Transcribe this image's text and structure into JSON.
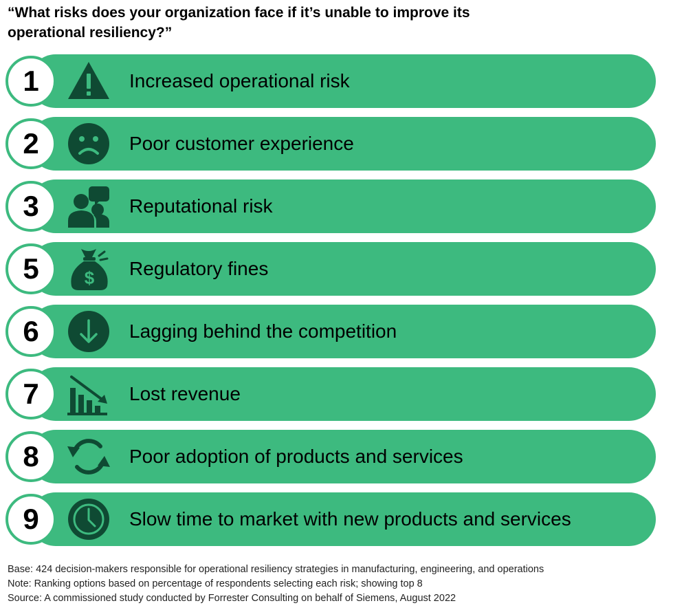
{
  "title": "“What risks does your organization face if it’s unable to improve its operational resiliency?”",
  "colors": {
    "accent": "#3dba7f",
    "icon": "#0f4a33",
    "text": "#000000"
  },
  "items": [
    {
      "rank": "1",
      "label": "Increased operational risk",
      "icon": "warning-icon"
    },
    {
      "rank": "2",
      "label": "Poor customer experience",
      "icon": "sad-face-icon"
    },
    {
      "rank": "3",
      "label": "Reputational risk",
      "icon": "people-speech-icon"
    },
    {
      "rank": "5",
      "label": "Regulatory fines",
      "icon": "money-bag-icon"
    },
    {
      "rank": "6",
      "label": "Lagging behind the competition",
      "icon": "down-arrow-icon"
    },
    {
      "rank": "7",
      "label": "Lost revenue",
      "icon": "declining-chart-icon"
    },
    {
      "rank": "8",
      "label": "Poor adoption of products and services",
      "icon": "refresh-arrows-icon"
    },
    {
      "rank": "9",
      "label": "Slow time to market with new products and services",
      "icon": "clock-icon"
    }
  ],
  "footer": {
    "base": "Base: 424 decision-makers responsible for operational resiliency strategies in manufacturing, engineering, and operations",
    "note": "Note: Ranking options based on percentage of respondents selecting each risk; showing top 8",
    "source": "Source: A commissioned study conducted by Forrester Consulting on behalf of Siemens, August 2022"
  }
}
